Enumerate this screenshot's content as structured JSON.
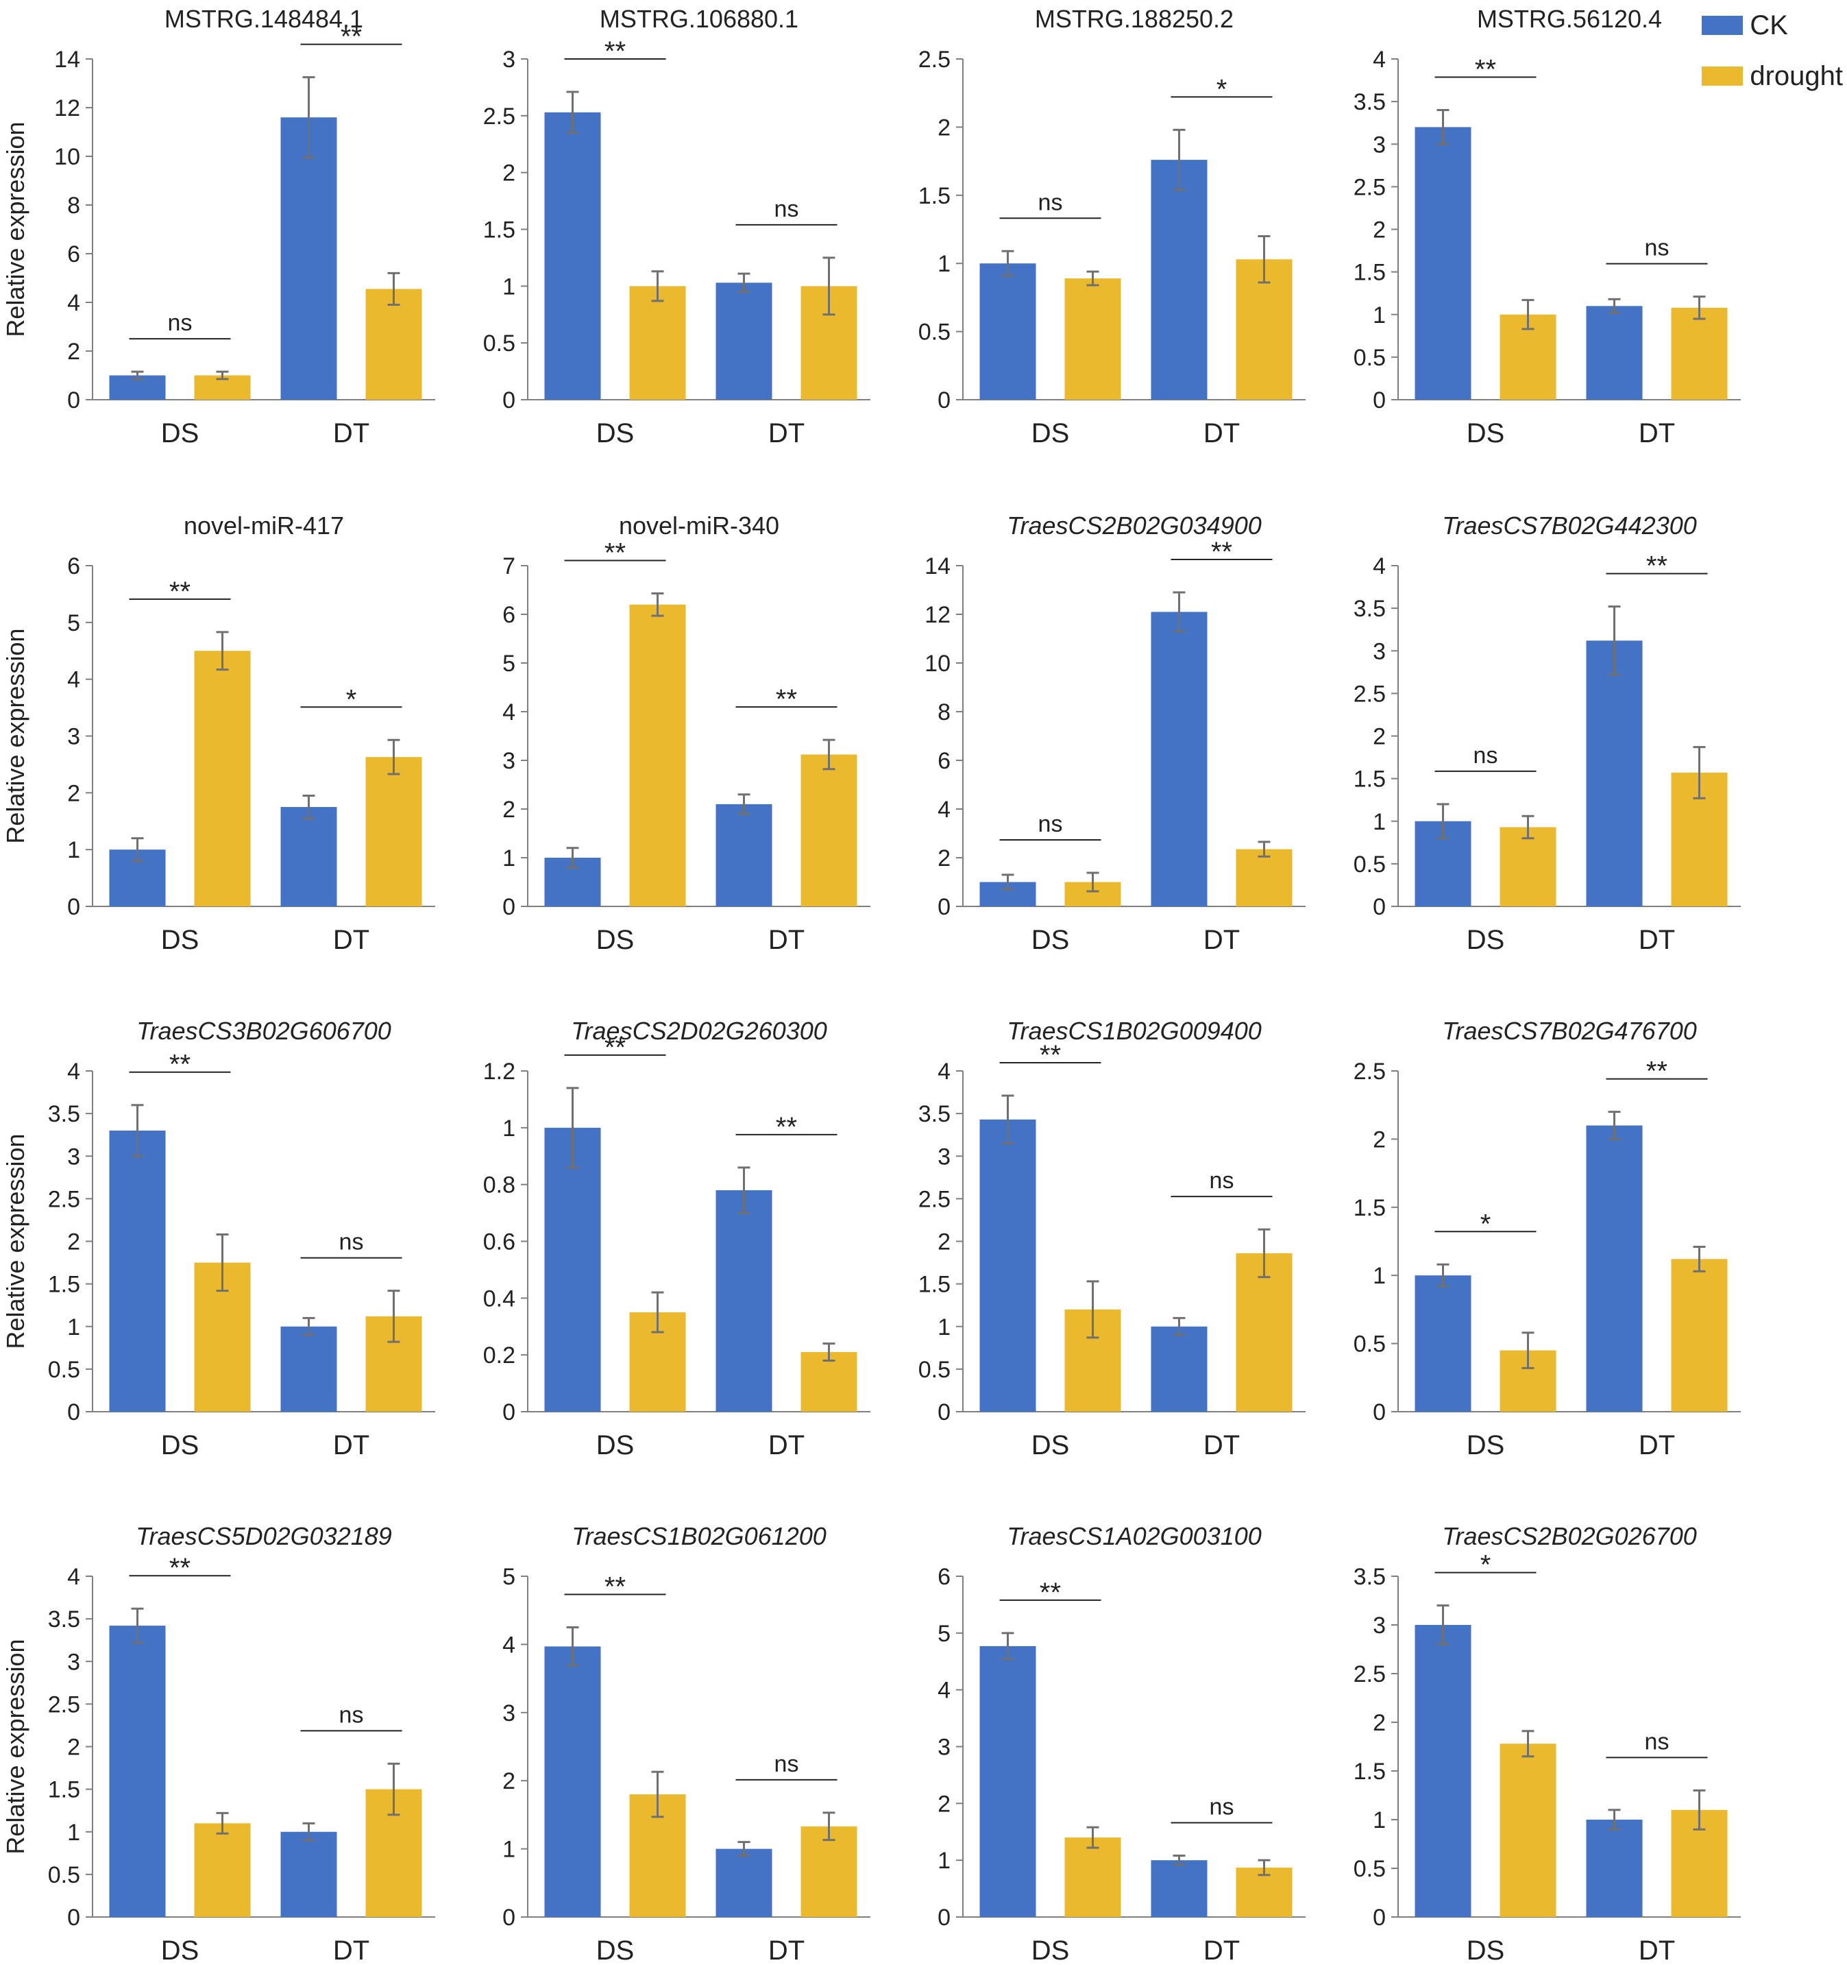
{
  "colors": {
    "ck": "#4472C4",
    "drought": "#EBB92E",
    "axis": "#7F7F7F",
    "error": "#707070",
    "text": "#222222"
  },
  "legend": [
    {
      "key": "ck",
      "label": "CK"
    },
    {
      "key": "drought",
      "label": "drought"
    }
  ],
  "chart_data": [
    {
      "type": "bar",
      "title": "MSTRG.148484.1",
      "italic": false,
      "ylabel": "Relative expression",
      "categories": [
        "DS",
        "DT"
      ],
      "ylim": [
        0,
        14
      ],
      "yticks": [
        0,
        2,
        4,
        6,
        8,
        10,
        12,
        14
      ],
      "series": [
        {
          "name": "CK",
          "values": [
            1.0,
            11.6
          ],
          "errors": [
            0.15,
            1.65
          ]
        },
        {
          "name": "drought",
          "values": [
            1.0,
            4.55
          ],
          "errors": [
            0.15,
            0.65
          ]
        }
      ],
      "significance": [
        "ns",
        "**"
      ]
    },
    {
      "type": "bar",
      "title": "MSTRG.106880.1",
      "italic": false,
      "ylabel": "",
      "categories": [
        "DS",
        "DT"
      ],
      "ylim": [
        0,
        3
      ],
      "yticks": [
        0,
        0.5,
        1,
        1.5,
        2,
        2.5,
        3
      ],
      "series": [
        {
          "name": "CK",
          "values": [
            2.53,
            1.03
          ],
          "errors": [
            0.18,
            0.08
          ]
        },
        {
          "name": "drought",
          "values": [
            1.0,
            1.0
          ],
          "errors": [
            0.13,
            0.25
          ]
        }
      ],
      "significance": [
        "**",
        "ns"
      ]
    },
    {
      "type": "bar",
      "title": "MSTRG.188250.2",
      "italic": false,
      "ylabel": "",
      "categories": [
        "DS",
        "DT"
      ],
      "ylim": [
        0,
        2.5
      ],
      "yticks": [
        0,
        0.5,
        1,
        1.5,
        2,
        2.5
      ],
      "series": [
        {
          "name": "CK",
          "values": [
            1.0,
            1.76
          ],
          "errors": [
            0.09,
            0.22
          ]
        },
        {
          "name": "drought",
          "values": [
            0.89,
            1.03
          ],
          "errors": [
            0.05,
            0.17
          ]
        }
      ],
      "significance": [
        "ns",
        "*"
      ]
    },
    {
      "type": "bar",
      "title": "MSTRG.56120.4",
      "italic": false,
      "ylabel": "",
      "categories": [
        "DS",
        "DT"
      ],
      "ylim": [
        0,
        4
      ],
      "yticks": [
        0,
        0.5,
        1,
        1.5,
        2,
        2.5,
        3,
        3.5,
        4
      ],
      "series": [
        {
          "name": "CK",
          "values": [
            3.2,
            1.1
          ],
          "errors": [
            0.2,
            0.08
          ]
        },
        {
          "name": "drought",
          "values": [
            1.0,
            1.08
          ],
          "errors": [
            0.17,
            0.13
          ]
        }
      ],
      "significance": [
        "**",
        "ns"
      ]
    },
    {
      "type": "bar",
      "title": "novel-miR-417",
      "italic": false,
      "ylabel": "Relative expression",
      "categories": [
        "DS",
        "DT"
      ],
      "ylim": [
        0,
        6
      ],
      "yticks": [
        0,
        1,
        2,
        3,
        4,
        5,
        6
      ],
      "series": [
        {
          "name": "CK",
          "values": [
            1.0,
            1.75
          ],
          "errors": [
            0.2,
            0.2
          ]
        },
        {
          "name": "drought",
          "values": [
            4.5,
            2.63
          ],
          "errors": [
            0.33,
            0.3
          ]
        }
      ],
      "significance": [
        "**",
        "*"
      ]
    },
    {
      "type": "bar",
      "title": "novel-miR-340",
      "italic": false,
      "ylabel": "",
      "categories": [
        "DS",
        "DT"
      ],
      "ylim": [
        0,
        7
      ],
      "yticks": [
        0,
        1,
        2,
        3,
        4,
        5,
        6,
        7
      ],
      "series": [
        {
          "name": "CK",
          "values": [
            1.0,
            2.1
          ],
          "errors": [
            0.2,
            0.2
          ]
        },
        {
          "name": "drought",
          "values": [
            6.2,
            3.12
          ],
          "errors": [
            0.23,
            0.3
          ]
        }
      ],
      "significance": [
        "**",
        "**"
      ]
    },
    {
      "type": "bar",
      "title": "TraesCS2B02G034900",
      "italic": true,
      "ylabel": "",
      "categories": [
        "DS",
        "DT"
      ],
      "ylim": [
        0,
        14
      ],
      "yticks": [
        0,
        2,
        4,
        6,
        8,
        10,
        12,
        14
      ],
      "series": [
        {
          "name": "CK",
          "values": [
            1.0,
            12.1
          ],
          "errors": [
            0.3,
            0.8
          ]
        },
        {
          "name": "drought",
          "values": [
            1.0,
            2.35
          ],
          "errors": [
            0.38,
            0.3
          ]
        }
      ],
      "significance": [
        "ns",
        "**"
      ]
    },
    {
      "type": "bar",
      "title": "TraesCS7B02G442300",
      "italic": true,
      "ylabel": "",
      "categories": [
        "DS",
        "DT"
      ],
      "ylim": [
        0,
        4
      ],
      "yticks": [
        0,
        0.5,
        1,
        1.5,
        2,
        2.5,
        3,
        3.5,
        4
      ],
      "series": [
        {
          "name": "CK",
          "values": [
            1.0,
            3.12
          ],
          "errors": [
            0.2,
            0.4
          ]
        },
        {
          "name": "drought",
          "values": [
            0.93,
            1.57
          ],
          "errors": [
            0.13,
            0.3
          ]
        }
      ],
      "significance": [
        "ns",
        "**"
      ]
    },
    {
      "type": "bar",
      "title": "TraesCS3B02G606700",
      "italic": true,
      "ylabel": "Relative expression",
      "categories": [
        "DS",
        "DT"
      ],
      "ylim": [
        0,
        4
      ],
      "yticks": [
        0,
        0.5,
        1,
        1.5,
        2,
        2.5,
        3,
        3.5,
        4
      ],
      "series": [
        {
          "name": "CK",
          "values": [
            3.3,
            1.0
          ],
          "errors": [
            0.3,
            0.1
          ]
        },
        {
          "name": "drought",
          "values": [
            1.75,
            1.12
          ],
          "errors": [
            0.33,
            0.3
          ]
        }
      ],
      "significance": [
        "**",
        "ns"
      ]
    },
    {
      "type": "bar",
      "title": "TraesCS2D02G260300",
      "italic": true,
      "ylabel": "",
      "categories": [
        "DS",
        "DT"
      ],
      "ylim": [
        0,
        1.2
      ],
      "yticks": [
        0,
        0.2,
        0.4,
        0.6,
        0.8,
        1,
        1.2
      ],
      "series": [
        {
          "name": "CK",
          "values": [
            1.0,
            0.78
          ],
          "errors": [
            0.14,
            0.08
          ]
        },
        {
          "name": "drought",
          "values": [
            0.35,
            0.21
          ],
          "errors": [
            0.07,
            0.03
          ]
        }
      ],
      "significance": [
        "**",
        "**"
      ]
    },
    {
      "type": "bar",
      "title": "TraesCS1B02G009400",
      "italic": true,
      "ylabel": "",
      "categories": [
        "DS",
        "DT"
      ],
      "ylim": [
        0,
        4
      ],
      "yticks": [
        0,
        0.5,
        1,
        1.5,
        2,
        2.5,
        3,
        3.5,
        4
      ],
      "series": [
        {
          "name": "CK",
          "values": [
            3.43,
            1.0
          ],
          "errors": [
            0.28,
            0.1
          ]
        },
        {
          "name": "drought",
          "values": [
            1.2,
            1.86
          ],
          "errors": [
            0.33,
            0.28
          ]
        }
      ],
      "significance": [
        "**",
        "ns"
      ]
    },
    {
      "type": "bar",
      "title": "TraesCS7B02G476700",
      "italic": true,
      "ylabel": "",
      "categories": [
        "DS",
        "DT"
      ],
      "ylim": [
        0,
        2.5
      ],
      "yticks": [
        0,
        0.5,
        1,
        1.5,
        2,
        2.5
      ],
      "series": [
        {
          "name": "CK",
          "values": [
            1.0,
            2.1
          ],
          "errors": [
            0.08,
            0.1
          ]
        },
        {
          "name": "drought",
          "values": [
            0.45,
            1.12
          ],
          "errors": [
            0.13,
            0.09
          ]
        }
      ],
      "significance": [
        "*",
        "**"
      ]
    },
    {
      "type": "bar",
      "title": "TraesCS5D02G032189",
      "italic": true,
      "ylabel": "Relative expression",
      "categories": [
        "DS",
        "DT"
      ],
      "ylim": [
        0,
        4
      ],
      "yticks": [
        0,
        0.5,
        1,
        1.5,
        2,
        2.5,
        3,
        3.5,
        4
      ],
      "series": [
        {
          "name": "CK",
          "values": [
            3.42,
            1.0
          ],
          "errors": [
            0.2,
            0.1
          ]
        },
        {
          "name": "drought",
          "values": [
            1.1,
            1.5
          ],
          "errors": [
            0.12,
            0.3
          ]
        }
      ],
      "significance": [
        "**",
        "ns"
      ]
    },
    {
      "type": "bar",
      "title": "TraesCS1B02G061200",
      "italic": true,
      "ylabel": "",
      "categories": [
        "DS",
        "DT"
      ],
      "ylim": [
        0,
        5
      ],
      "yticks": [
        0,
        1,
        2,
        3,
        4,
        5
      ],
      "series": [
        {
          "name": "CK",
          "values": [
            3.97,
            1.0
          ],
          "errors": [
            0.28,
            0.1
          ]
        },
        {
          "name": "drought",
          "values": [
            1.8,
            1.33
          ],
          "errors": [
            0.33,
            0.2
          ]
        }
      ],
      "significance": [
        "**",
        "ns"
      ]
    },
    {
      "type": "bar",
      "title": "TraesCS1A02G003100",
      "italic": true,
      "ylabel": "",
      "categories": [
        "DS",
        "DT"
      ],
      "ylim": [
        0,
        6
      ],
      "yticks": [
        0,
        1,
        2,
        3,
        4,
        5,
        6
      ],
      "series": [
        {
          "name": "CK",
          "values": [
            4.77,
            1.0
          ],
          "errors": [
            0.23,
            0.08
          ]
        },
        {
          "name": "drought",
          "values": [
            1.4,
            0.87
          ],
          "errors": [
            0.18,
            0.13
          ]
        }
      ],
      "significance": [
        "**",
        "ns"
      ]
    },
    {
      "type": "bar",
      "title": "TraesCS2B02G026700",
      "italic": true,
      "ylabel": "",
      "categories": [
        "DS",
        "DT"
      ],
      "ylim": [
        0,
        3.5
      ],
      "yticks": [
        0,
        0.5,
        1,
        1.5,
        2,
        2.5,
        3,
        3.5
      ],
      "series": [
        {
          "name": "CK",
          "values": [
            3.0,
            1.0
          ],
          "errors": [
            0.2,
            0.1
          ]
        },
        {
          "name": "drought",
          "values": [
            1.78,
            1.1
          ],
          "errors": [
            0.13,
            0.2
          ]
        }
      ],
      "significance": [
        "*",
        "ns"
      ]
    }
  ]
}
